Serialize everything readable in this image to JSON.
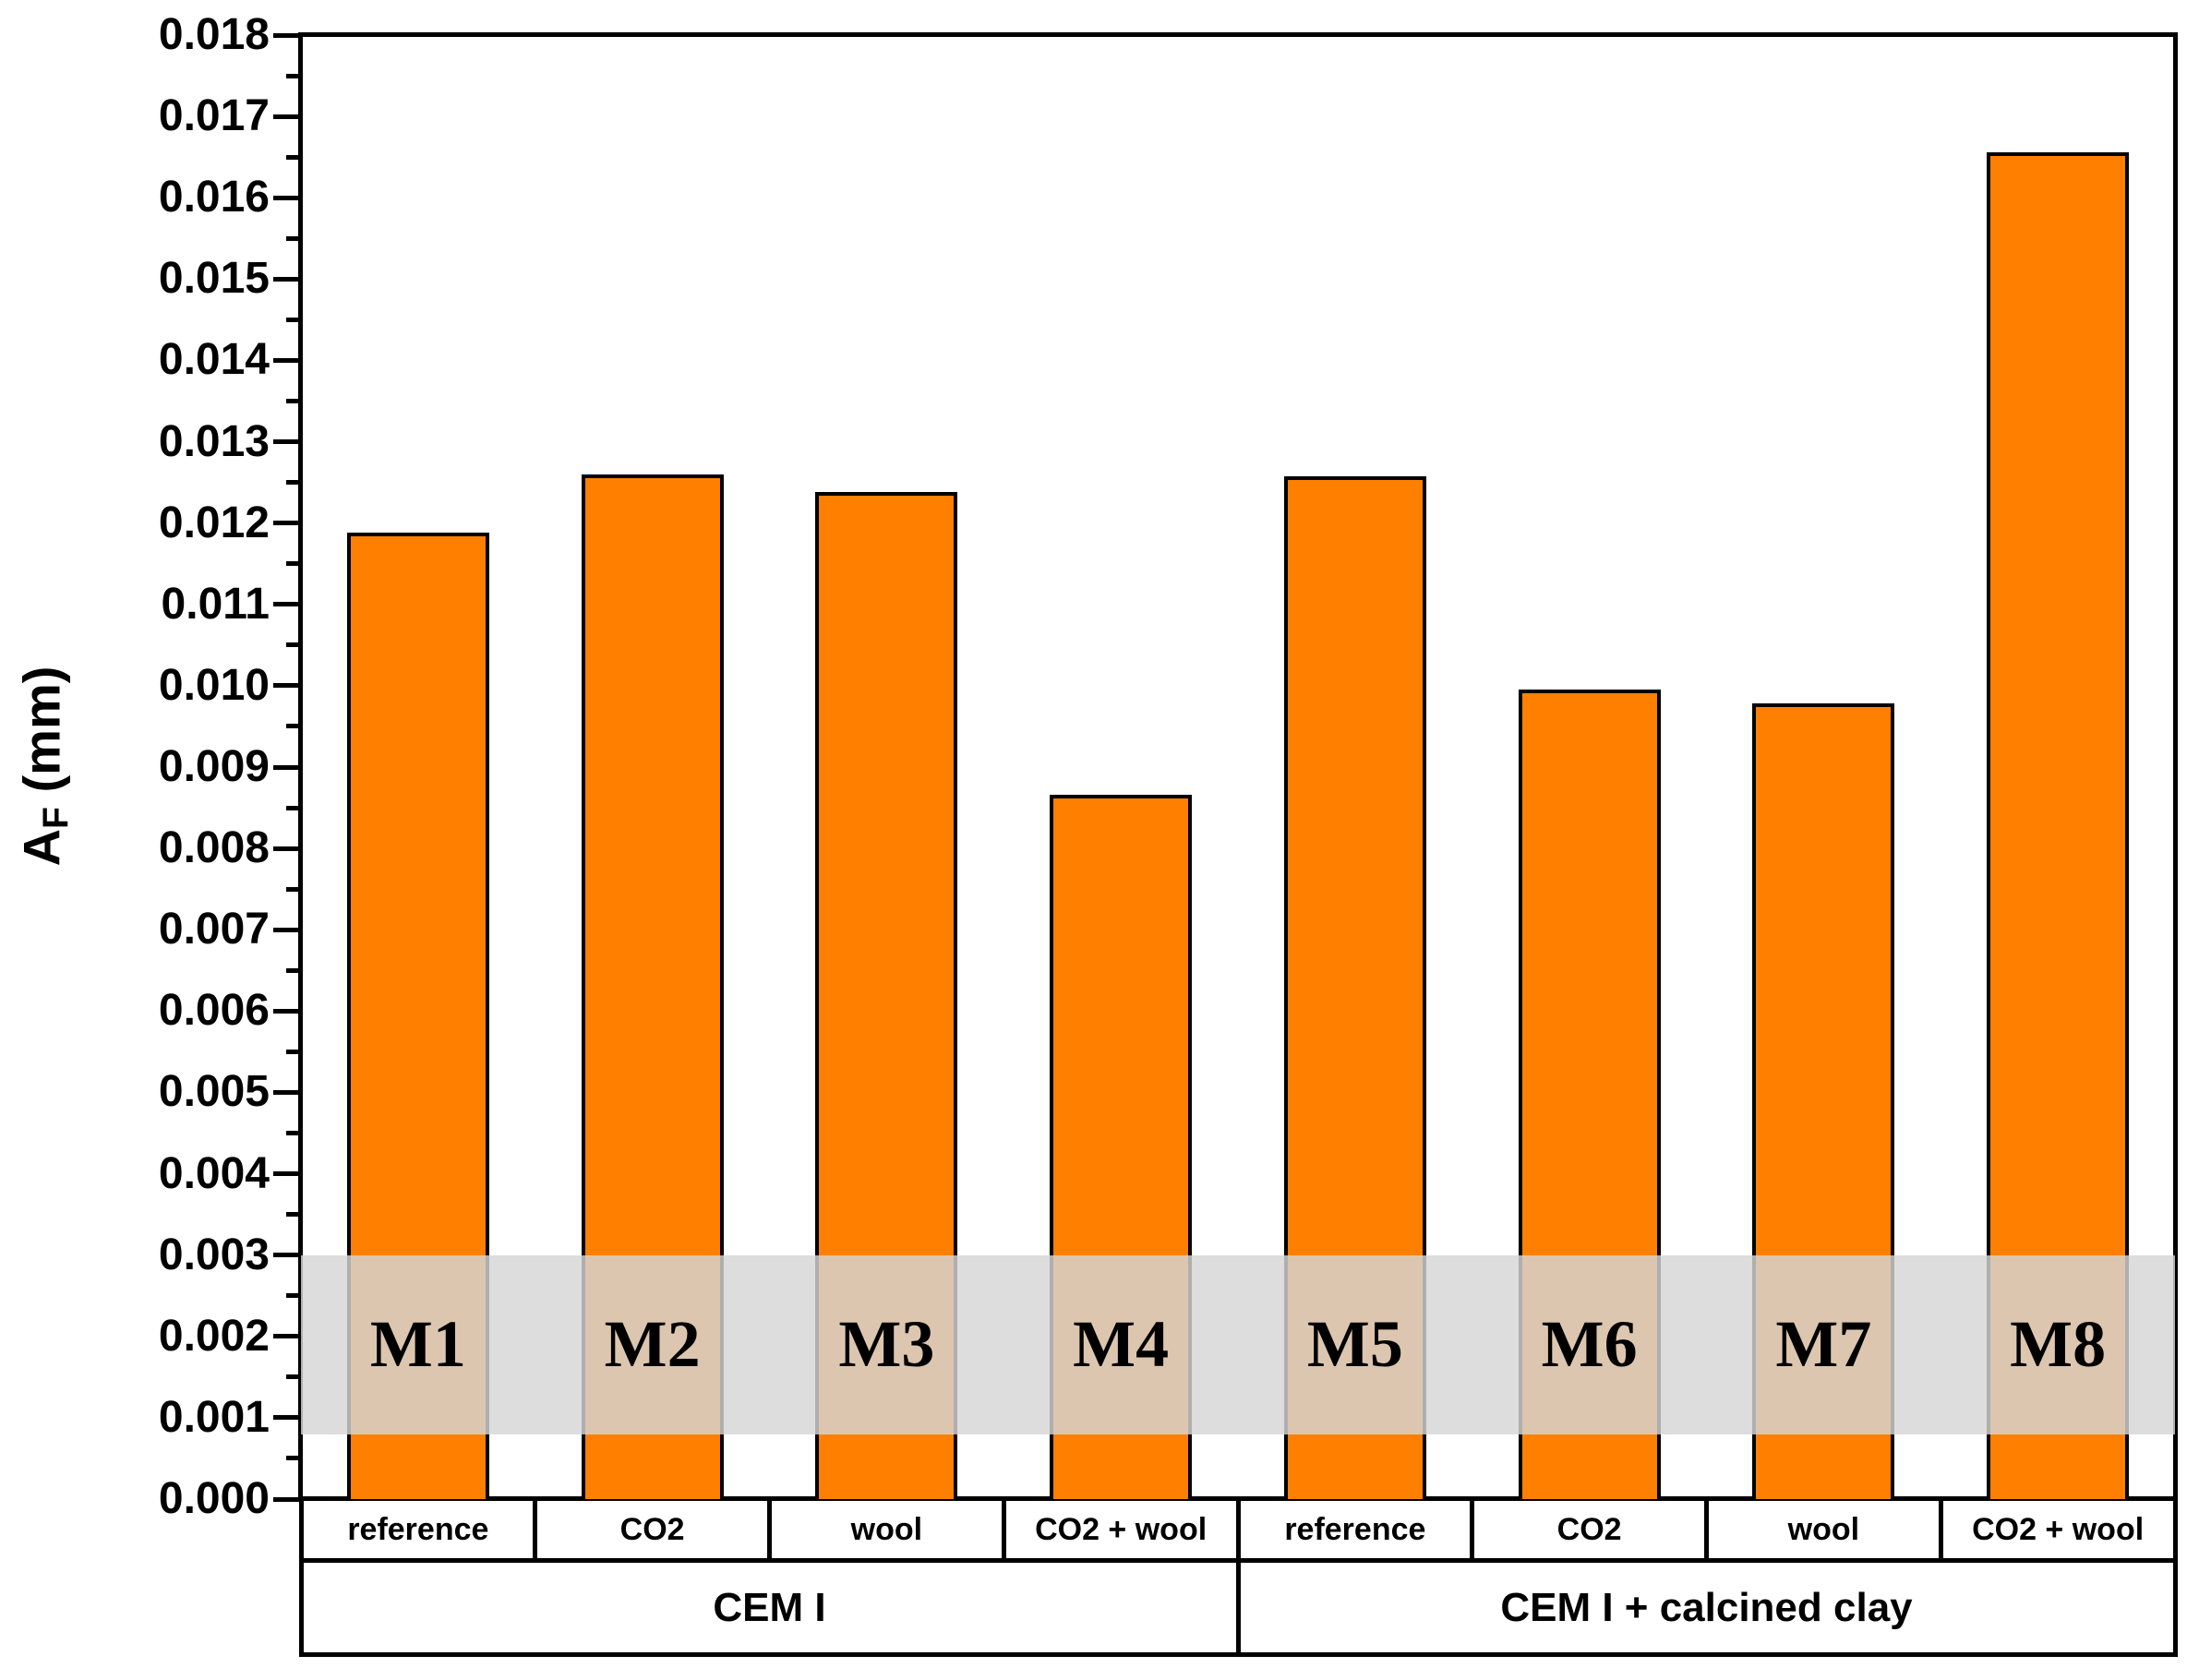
{
  "chart_data": {
    "type": "bar",
    "title": "",
    "ylabel": {
      "variable": "A",
      "subscript": "F",
      "unit": "(mm)"
    },
    "xlabel": "",
    "bar_labels": [
      "M1",
      "M2",
      "M3",
      "M4",
      "M5",
      "M6",
      "M7",
      "M8"
    ],
    "categories": [
      "reference",
      "CO2",
      "wool",
      "CO2 + wool",
      "reference",
      "CO2",
      "wool",
      "CO2 + wool"
    ],
    "groups": [
      {
        "label": "CEM I",
        "span": 4
      },
      {
        "label": "CEM I + calcined clay",
        "span": 4
      }
    ],
    "values": [
      0.01188,
      0.0126,
      0.01238,
      0.00866,
      0.01258,
      0.00995,
      0.00978,
      0.01656
    ],
    "ylim": [
      0,
      0.018
    ],
    "ytick_step": 0.001,
    "ytick_minor_step": 0.0005,
    "ytick_decimals": 3,
    "grid": "off",
    "legend": "none",
    "highlight_band": {
      "from": 0.0008,
      "to": 0.003
    },
    "colors": {
      "bar_fill": "#FF8000",
      "bar_border": "#000000",
      "band_overlay": "rgba(214,214,214,0.82)",
      "axis": "#000000",
      "text": "#000000",
      "background": "#FFFFFF"
    }
  }
}
